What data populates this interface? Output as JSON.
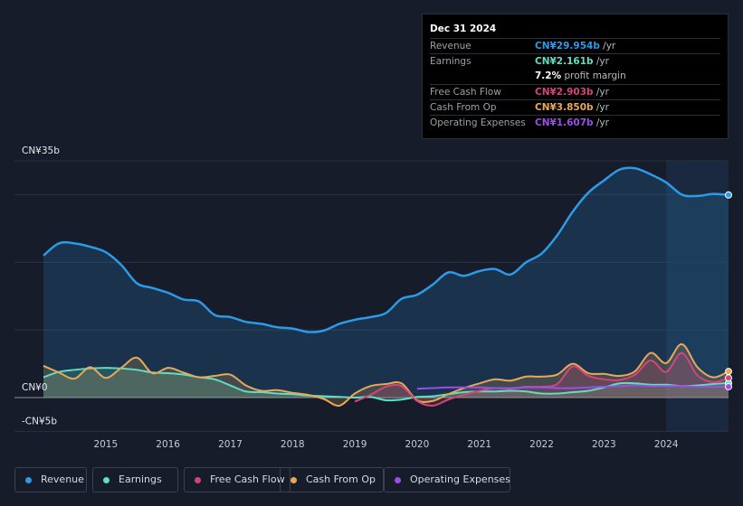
{
  "colors": {
    "revenue": "#2d9ae8",
    "earnings": "#5ee0c0",
    "fcf": "#d6457a",
    "cfo": "#e8a85a",
    "opex": "#9b4ee8",
    "background": "#161c2a"
  },
  "tooltip": {
    "date": "Dec 31 2024",
    "rows": [
      {
        "label": "Revenue",
        "value": "CN¥29.954b",
        "unit": " /yr",
        "color": "#2d9ae8"
      },
      {
        "label": "Earnings",
        "value": "CN¥2.161b",
        "unit": " /yr",
        "color": "#5ee0c0"
      },
      {
        "label": "",
        "value": "7.2%",
        "unit": " profit margin",
        "color": "#ffffff"
      },
      {
        "label": "Free Cash Flow",
        "value": "CN¥2.903b",
        "unit": " /yr",
        "color": "#d6457a"
      },
      {
        "label": "Cash From Op",
        "value": "CN¥3.850b",
        "unit": " /yr",
        "color": "#e8a85a"
      },
      {
        "label": "Operating Expenses",
        "value": "CN¥1.607b",
        "unit": " /yr",
        "color": "#9b4ee8"
      }
    ]
  },
  "legend": [
    {
      "label": "Revenue",
      "color": "#2d9ae8"
    },
    {
      "label": "Earnings",
      "color": "#5ee0c0"
    },
    {
      "label": "Free Cash Flow",
      "color": "#d6457a"
    },
    {
      "label": "Cash From Op",
      "color": "#e8a85a"
    },
    {
      "label": "Operating Expenses",
      "color": "#9b4ee8"
    }
  ],
  "chart_data": {
    "type": "area",
    "title": "",
    "ylim": [
      -5,
      35
    ],
    "y_tick_labels": [
      "CN¥35b",
      "CN¥0",
      "-CN¥5b"
    ],
    "y_tick_values": [
      35,
      0,
      -5
    ],
    "x_tick_labels": [
      "2015",
      "2016",
      "2017",
      "2018",
      "2019",
      "2020",
      "2021",
      "2022",
      "2023",
      "2024"
    ],
    "x_tick_values": [
      2015,
      2016,
      2017,
      2018,
      2019,
      2020,
      2021,
      2022,
      2023,
      2024
    ],
    "xlim": [
      2013.8,
      2025.0
    ],
    "forecast_start": 2024.0,
    "series": [
      {
        "name": "Revenue",
        "key": "revenue",
        "fill": true,
        "x": [
          2014.0,
          2014.25,
          2014.5,
          2014.75,
          2015.0,
          2015.25,
          2015.5,
          2015.75,
          2016.0,
          2016.25,
          2016.5,
          2016.75,
          2017.0,
          2017.25,
          2017.5,
          2017.75,
          2018.0,
          2018.25,
          2018.5,
          2018.75,
          2019.0,
          2019.25,
          2019.5,
          2019.75,
          2020.0,
          2020.25,
          2020.5,
          2020.75,
          2021.0,
          2021.25,
          2021.5,
          2021.75,
          2022.0,
          2022.25,
          2022.5,
          2022.75,
          2023.0,
          2023.25,
          2023.5,
          2023.75,
          2024.0,
          2024.25,
          2024.5,
          2024.75,
          2025.0
        ],
        "values": [
          21.0,
          22.8,
          22.8,
          22.3,
          21.5,
          19.6,
          16.9,
          16.2,
          15.5,
          14.5,
          14.2,
          12.2,
          11.9,
          11.2,
          10.9,
          10.4,
          10.2,
          9.7,
          9.9,
          10.9,
          11.5,
          11.9,
          12.5,
          14.6,
          15.2,
          16.7,
          18.5,
          18.0,
          18.7,
          19.0,
          18.2,
          20.0,
          21.3,
          24.0,
          27.5,
          30.3,
          32.1,
          33.7,
          33.9,
          33.0,
          31.8,
          30.0,
          29.8,
          30.1,
          29.954
        ]
      },
      {
        "name": "Earnings",
        "key": "earnings",
        "fill": true,
        "x": [
          2014.0,
          2014.25,
          2014.5,
          2014.75,
          2015.0,
          2015.25,
          2015.5,
          2015.75,
          2016.0,
          2016.25,
          2016.5,
          2016.75,
          2017.0,
          2017.25,
          2017.5,
          2017.75,
          2018.0,
          2018.25,
          2018.5,
          2018.75,
          2019.0,
          2019.25,
          2019.5,
          2019.75,
          2020.0,
          2020.25,
          2020.5,
          2020.75,
          2021.0,
          2021.25,
          2021.5,
          2021.75,
          2022.0,
          2022.25,
          2022.5,
          2022.75,
          2023.0,
          2023.25,
          2023.5,
          2023.75,
          2024.0,
          2024.25,
          2024.5,
          2024.75,
          2025.0
        ],
        "values": [
          3.0,
          3.8,
          4.1,
          4.3,
          4.4,
          4.3,
          4.1,
          3.7,
          3.6,
          3.4,
          3.0,
          2.7,
          1.8,
          0.9,
          0.8,
          0.6,
          0.5,
          0.3,
          0.2,
          0.1,
          0.0,
          0.1,
          -0.4,
          -0.3,
          0.1,
          0.2,
          0.5,
          0.8,
          0.9,
          0.9,
          1.0,
          0.9,
          0.6,
          0.6,
          0.8,
          1.0,
          1.5,
          2.1,
          2.1,
          1.9,
          1.9,
          1.7,
          1.8,
          2.0,
          2.161
        ]
      },
      {
        "name": "Free Cash Flow",
        "key": "fcf",
        "fill": true,
        "x": [
          2019.0,
          2019.25,
          2019.5,
          2019.75,
          2020.0,
          2020.25,
          2020.5,
          2020.75,
          2021.0,
          2021.25,
          2021.5,
          2021.75,
          2022.0,
          2022.25,
          2022.5,
          2022.75,
          2023.0,
          2023.25,
          2023.5,
          2023.75,
          2024.0,
          2024.25,
          2024.5,
          2024.75,
          2025.0
        ],
        "values": [
          -0.6,
          0.4,
          1.6,
          1.7,
          -0.5,
          -1.2,
          -0.3,
          0.4,
          1.0,
          1.4,
          1.3,
          1.6,
          1.6,
          2.0,
          4.6,
          3.2,
          2.7,
          2.6,
          3.4,
          5.5,
          3.8,
          6.6,
          3.3,
          2.3,
          2.903
        ]
      },
      {
        "name": "Cash From Op",
        "key": "cfo",
        "fill": true,
        "x": [
          2014.0,
          2014.25,
          2014.5,
          2014.75,
          2015.0,
          2015.25,
          2015.5,
          2015.75,
          2016.0,
          2016.25,
          2016.5,
          2016.75,
          2017.0,
          2017.25,
          2017.5,
          2017.75,
          2018.0,
          2018.25,
          2018.5,
          2018.75,
          2019.0,
          2019.25,
          2019.5,
          2019.75,
          2020.0,
          2020.25,
          2020.5,
          2020.75,
          2021.0,
          2021.25,
          2021.5,
          2021.75,
          2022.0,
          2022.25,
          2022.5,
          2022.75,
          2023.0,
          2023.25,
          2023.5,
          2023.75,
          2024.0,
          2024.25,
          2024.5,
          2024.75,
          2025.0
        ],
        "values": [
          4.7,
          3.7,
          2.8,
          4.5,
          2.9,
          4.4,
          5.9,
          3.6,
          4.4,
          3.7,
          3.0,
          3.2,
          3.4,
          1.8,
          1.0,
          1.1,
          0.7,
          0.4,
          -0.2,
          -1.2,
          0.6,
          1.7,
          2.0,
          2.1,
          -0.4,
          -0.5,
          0.5,
          1.4,
          2.1,
          2.7,
          2.5,
          3.1,
          3.1,
          3.4,
          5.0,
          3.6,
          3.5,
          3.2,
          3.9,
          6.6,
          5.1,
          7.9,
          4.5,
          3.0,
          3.85
        ]
      },
      {
        "name": "Operating Expenses",
        "key": "opex",
        "fill": false,
        "x": [
          2020.0,
          2020.25,
          2020.5,
          2020.75,
          2021.0,
          2021.25,
          2021.5,
          2021.75,
          2022.0,
          2022.25,
          2022.5,
          2022.75,
          2023.0,
          2023.25,
          2023.5,
          2023.75,
          2024.0,
          2024.25,
          2024.5,
          2024.75,
          2025.0
        ],
        "values": [
          1.3,
          1.4,
          1.5,
          1.5,
          1.5,
          1.4,
          1.4,
          1.5,
          1.5,
          1.4,
          1.4,
          1.5,
          1.6,
          1.7,
          1.8,
          1.7,
          1.7,
          1.7,
          1.6,
          1.6,
          1.607
        ]
      }
    ]
  }
}
